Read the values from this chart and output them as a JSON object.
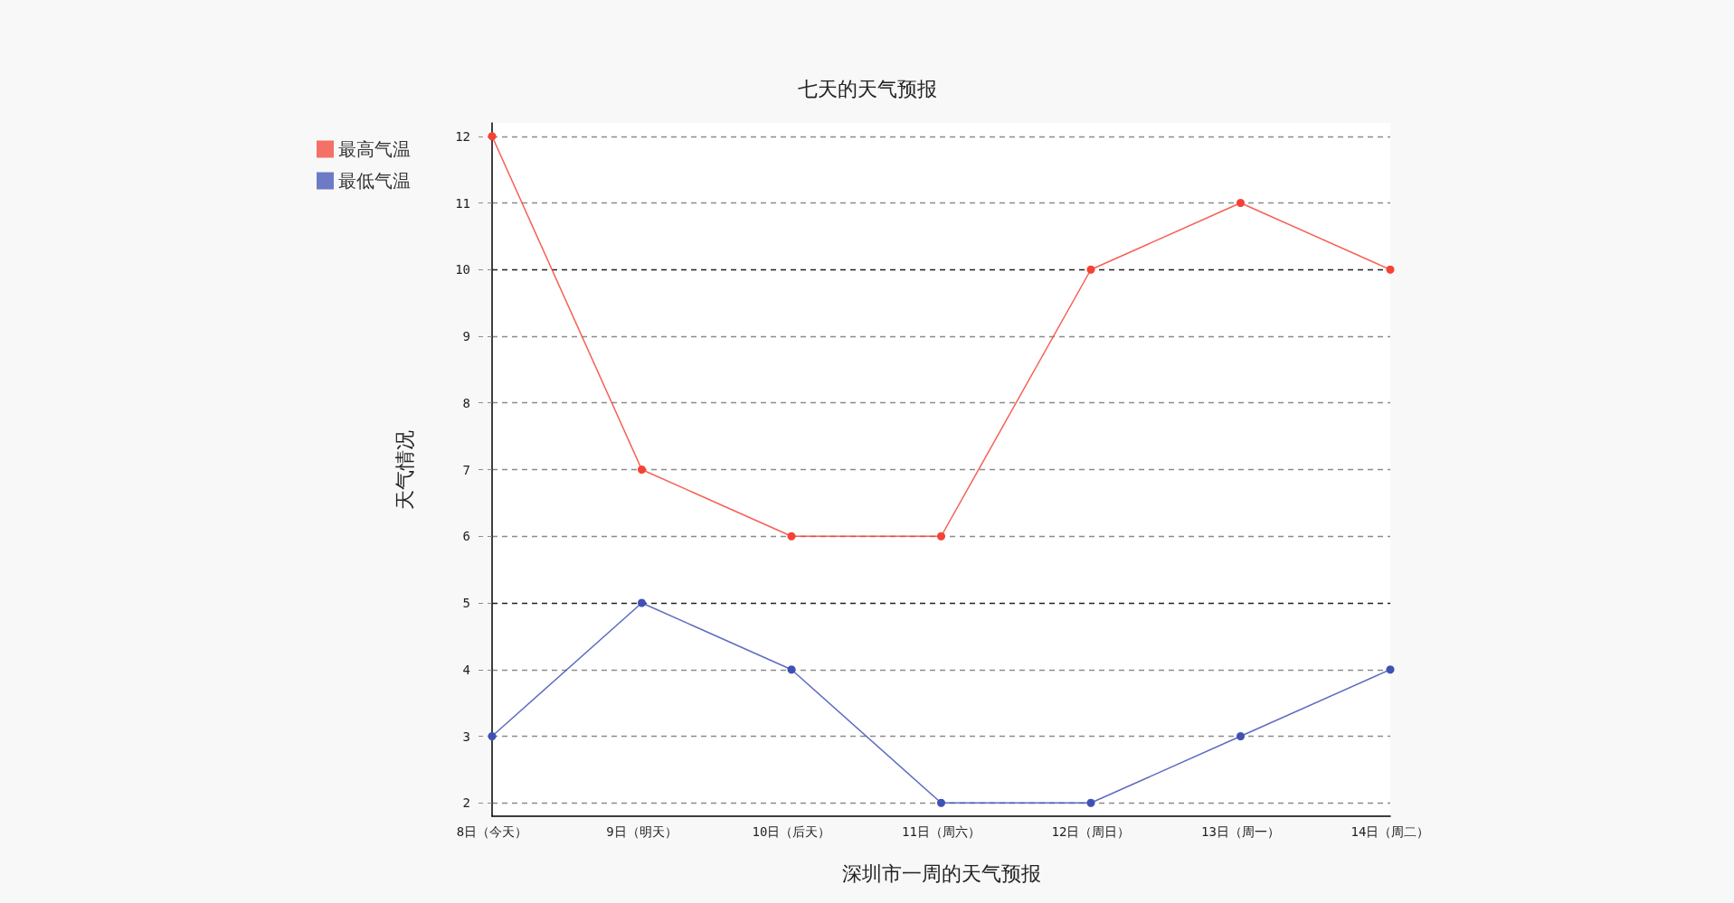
{
  "chart_data": {
    "type": "line",
    "title": "七天的天气预报",
    "xlabel": "深圳市一周的天气预报",
    "ylabel": "天气情况",
    "categories": [
      "8日（今天）",
      "9日（明天）",
      "10日（后天）",
      "11日（周六）",
      "12日（周日）",
      "13日（周一）",
      "14日（周二）"
    ],
    "series": [
      {
        "name": "最高气温",
        "color": "#f44336",
        "values": [
          12,
          7,
          6,
          6,
          10,
          11,
          10
        ]
      },
      {
        "name": "最低气温",
        "color": "#3f51b5",
        "values": [
          3,
          5,
          4,
          2,
          2,
          3,
          4
        ]
      }
    ],
    "ylim": [
      1.8,
      12.2
    ],
    "yticks": [
      2,
      3,
      4,
      5,
      6,
      7,
      8,
      9,
      10,
      11,
      12
    ],
    "grid": "y",
    "legend": "top left",
    "marker": "circle",
    "line_style": "solid"
  }
}
